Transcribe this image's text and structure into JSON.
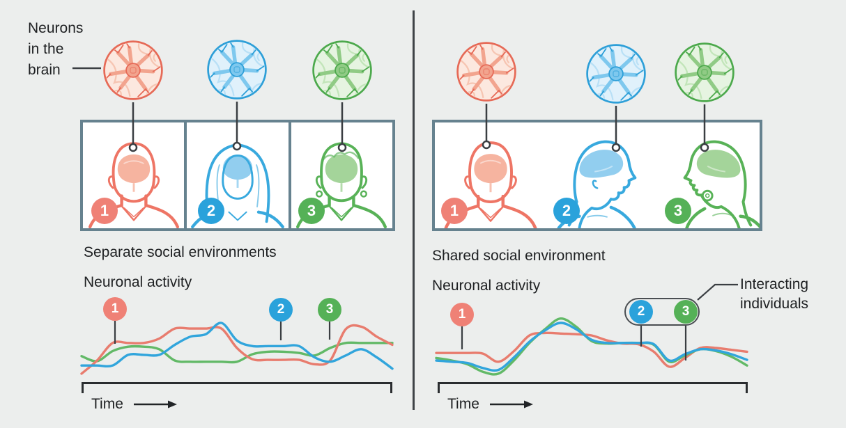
{
  "annotation": {
    "neurons_label_lines": [
      "Neurons",
      "in the",
      "brain"
    ]
  },
  "individuals": [
    {
      "number": "1",
      "color": "#EF8176",
      "line_color": "#E87C6E"
    },
    {
      "number": "2",
      "color": "#2AA2DB",
      "line_color": "#31A5DC"
    },
    {
      "number": "3",
      "color": "#55B157",
      "line_color": "#62B967"
    }
  ],
  "left_panel": {
    "environment_label": "Separate social environments",
    "activity_label": "Neuronal activity",
    "time_label": "Time"
  },
  "right_panel": {
    "environment_label": "Shared social environment",
    "activity_label": "Neuronal activity",
    "time_label": "Time",
    "interacting_label_lines": [
      "Interacting",
      "individuals"
    ]
  },
  "icons": {
    "time_arrow": "right-arrow",
    "neuron": "neuron-cell",
    "connector_end": "small-ring"
  },
  "colors": {
    "background": "#ECEEED",
    "box_border": "#66828F",
    "box_fill": "#FFFFFF",
    "divider": "#3F4347",
    "connector": "#3A3E42",
    "axis": "#2A2D2F",
    "text": "#1E2022",
    "red": "#E87C6E",
    "blue": "#31A5DC",
    "green": "#62B967"
  },
  "chart_data": [
    {
      "type": "line",
      "title": "Neuronal activity — separate social environments",
      "xlabel": "Time",
      "ylabel": "",
      "grid": false,
      "legend": "numbered badges pinned to lines (1 red, 2 blue, 3 green)",
      "ylim": [
        0,
        100
      ],
      "x": [
        0,
        5,
        10,
        15,
        20,
        25,
        30,
        35,
        40,
        45,
        50,
        55,
        60,
        65,
        70,
        75,
        80,
        85,
        90,
        95,
        100
      ],
      "draw_order": [
        2,
        0,
        1
      ],
      "series": [
        {
          "name": "Individual 1",
          "color": "#E87C6E",
          "values": [
            9,
            30,
            58,
            58,
            58,
            65,
            81,
            81,
            81,
            81,
            50,
            32,
            31,
            31,
            31,
            24,
            30,
            80,
            84,
            68,
            55
          ]
        },
        {
          "name": "Individual 2",
          "color": "#31A5DC",
          "values": [
            22,
            22,
            22,
            39,
            39,
            39,
            55,
            68,
            72,
            90,
            62,
            53,
            53,
            53,
            53,
            35,
            28,
            38,
            48,
            35,
            17
          ]
        },
        {
          "name": "Individual 3",
          "color": "#62B967",
          "values": [
            37,
            29,
            45,
            52,
            52,
            48,
            30,
            28,
            28,
            28,
            28,
            40,
            44,
            44,
            42,
            38,
            50,
            58,
            58,
            58,
            58
          ]
        }
      ]
    },
    {
      "type": "line",
      "title": "Neuronal activity — shared social environment (synchronized)",
      "xlabel": "Time",
      "ylabel": "",
      "grid": false,
      "legend": "numbered badges pinned to lines; 2 and 3 circled as interacting individuals",
      "ylim": [
        0,
        100
      ],
      "x": [
        0,
        5,
        10,
        15,
        20,
        25,
        30,
        35,
        40,
        45,
        50,
        55,
        60,
        65,
        70,
        75,
        80,
        85,
        90,
        95,
        100
      ],
      "draw_order": [
        0,
        2,
        1
      ],
      "series": [
        {
          "name": "Individual 1",
          "color": "#E87C6E",
          "values": [
            42,
            42,
            42,
            41,
            28,
            45,
            70,
            74,
            73,
            72,
            70,
            62,
            57,
            56,
            44,
            20,
            34,
            50,
            50,
            47,
            44
          ]
        },
        {
          "name": "Individual 2",
          "color": "#31A5DC",
          "values": [
            30,
            28,
            26,
            18,
            15,
            35,
            60,
            78,
            90,
            80,
            63,
            58,
            58,
            58,
            56,
            30,
            40,
            48,
            46,
            40,
            31
          ]
        },
        {
          "name": "Individual 3",
          "color": "#62B967",
          "values": [
            34,
            30,
            24,
            12,
            9,
            30,
            58,
            80,
            97,
            84,
            61,
            57,
            58,
            58,
            55,
            28,
            38,
            48,
            45,
            36,
            22
          ]
        }
      ]
    }
  ]
}
